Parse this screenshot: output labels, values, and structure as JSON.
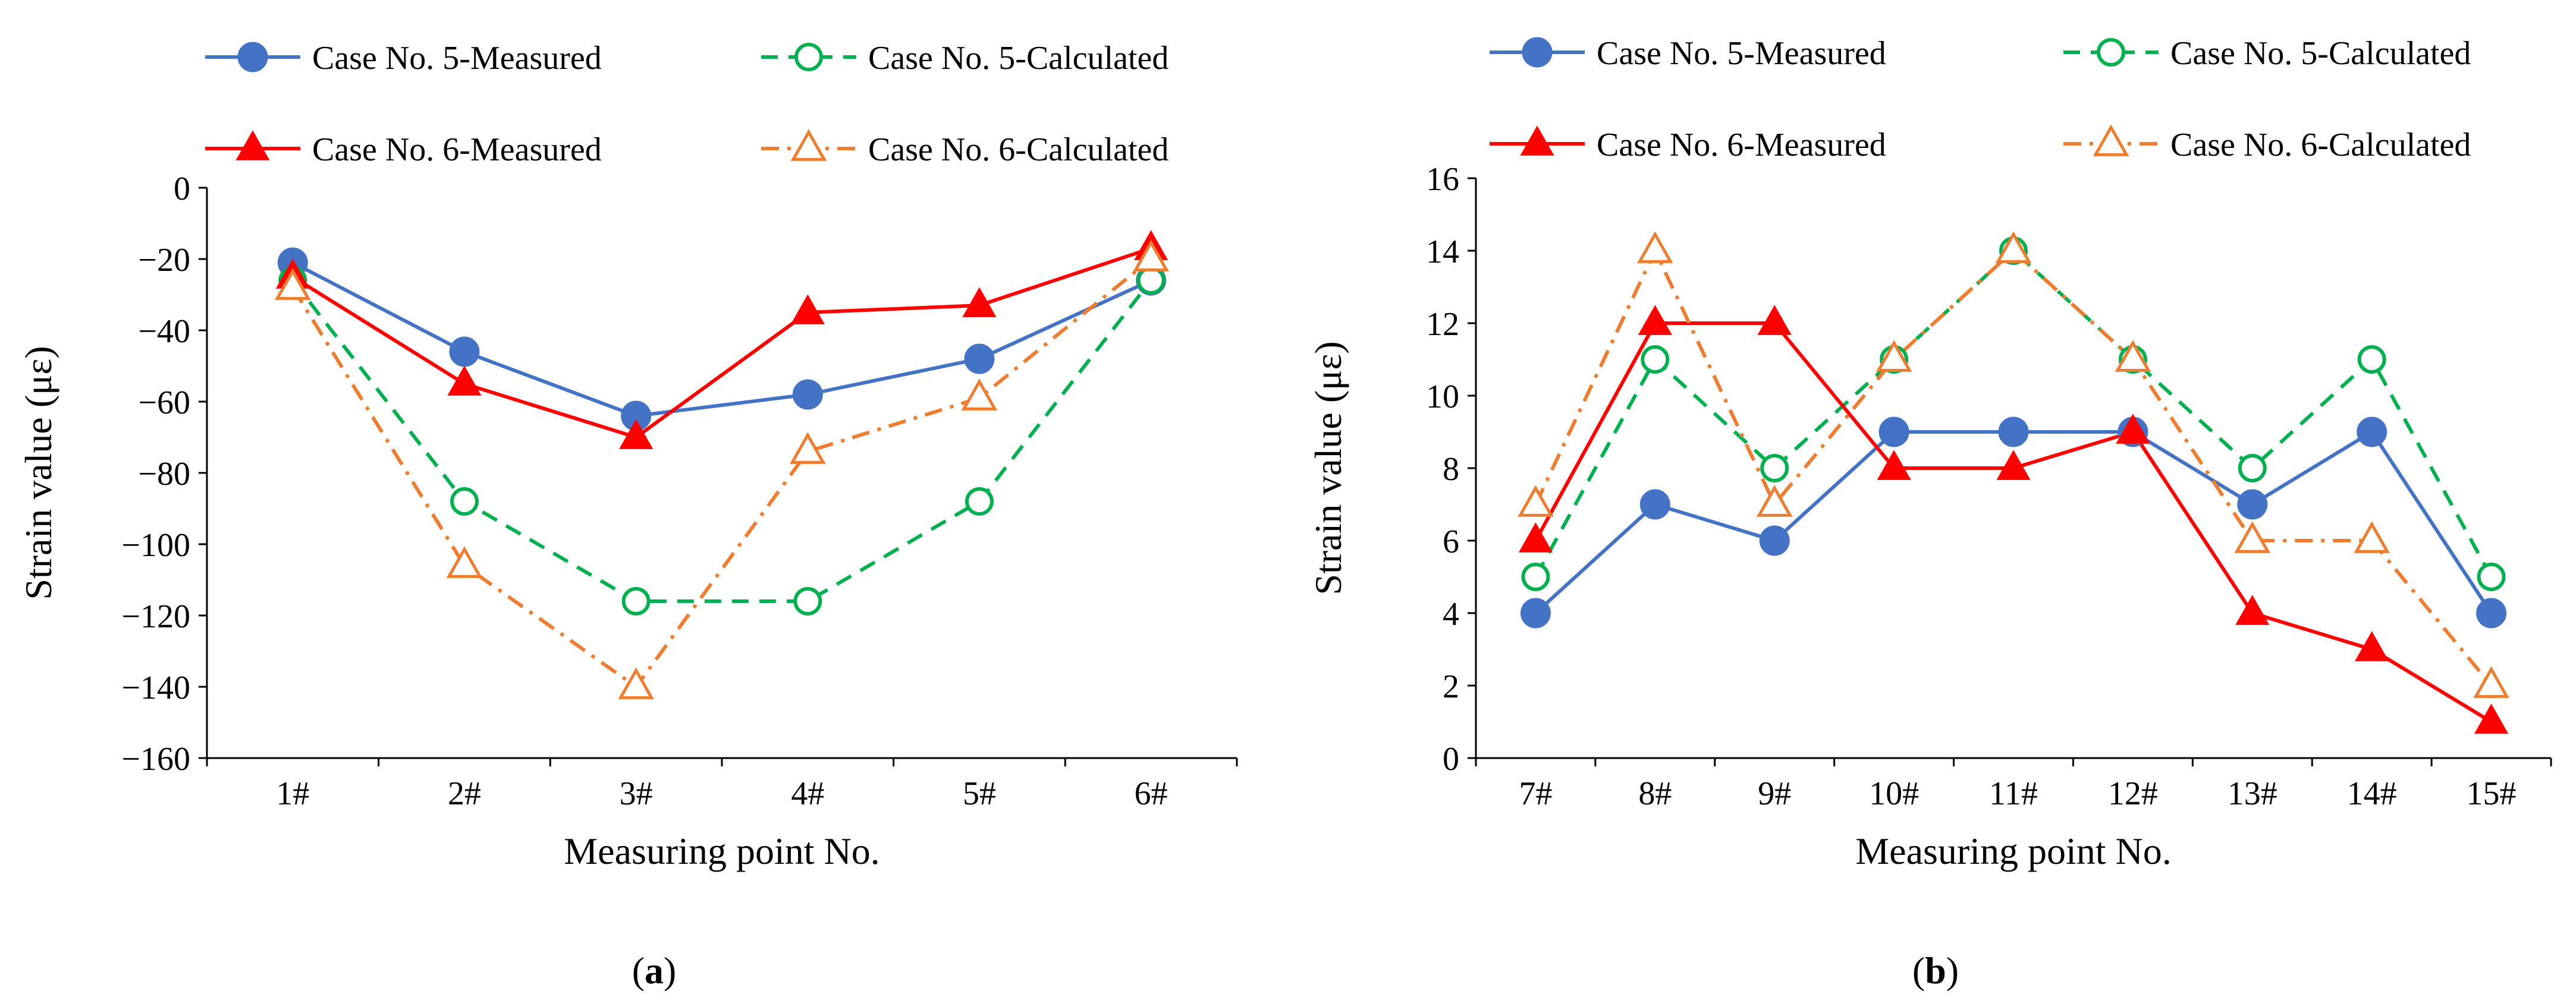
{
  "chart_data": [
    {
      "type": "line",
      "panel_label": "a",
      "xlabel": "Measuring point No.",
      "ylabel": "Strain value (με)",
      "categories": [
        "1#",
        "2#",
        "3#",
        "4#",
        "5#",
        "6#"
      ],
      "ylim": [
        -160,
        0
      ],
      "yticks": [
        0,
        -20,
        -40,
        -60,
        -80,
        -100,
        -120,
        -140,
        -160
      ],
      "legend_position": "top",
      "grid": false,
      "series": [
        {
          "name": "Case No. 5-Measured",
          "color": "#4472C4",
          "marker": "filled-circle",
          "dash": "solid",
          "values": [
            -21,
            -46,
            -64,
            -58,
            -48,
            -26
          ]
        },
        {
          "name": "Case No. 5-Calculated",
          "color": "#00B050",
          "marker": "open-circle",
          "dash": "dashed",
          "values": [
            -26,
            -88,
            -116,
            -116,
            -88,
            -26
          ]
        },
        {
          "name": "Case No. 6-Measured",
          "color": "#FF0000",
          "marker": "filled-triangle",
          "dash": "solid",
          "values": [
            -25,
            -55,
            -70,
            -35,
            -33,
            -17
          ]
        },
        {
          "name": "Case No. 6-Calculated",
          "color": "#ED7D31",
          "marker": "open-triangle",
          "dash": "dashdot",
          "values": [
            -28,
            -106,
            -140,
            -74,
            -59,
            -20
          ]
        }
      ]
    },
    {
      "type": "line",
      "panel_label": "b",
      "xlabel": "Measuring point No.",
      "ylabel": "Strain value (με)",
      "categories": [
        "7#",
        "8#",
        "9#",
        "10#",
        "11#",
        "12#",
        "13#",
        "14#",
        "15#"
      ],
      "ylim": [
        0,
        16
      ],
      "yticks": [
        0,
        2,
        4,
        6,
        8,
        10,
        12,
        14,
        16
      ],
      "legend_position": "top",
      "grid": false,
      "series": [
        {
          "name": "Case No. 5-Measured",
          "color": "#4472C4",
          "marker": "filled-circle",
          "dash": "solid",
          "values": [
            4,
            7,
            6,
            9,
            9,
            9,
            7,
            9,
            4
          ]
        },
        {
          "name": "Case No. 5-Calculated",
          "color": "#00B050",
          "marker": "open-circle",
          "dash": "dashed",
          "values": [
            5,
            11,
            8,
            11,
            14,
            11,
            8,
            11,
            5
          ]
        },
        {
          "name": "Case No. 6-Measured",
          "color": "#FF0000",
          "marker": "filled-triangle",
          "dash": "solid",
          "values": [
            6,
            12,
            12,
            8,
            8,
            9,
            4,
            3,
            1
          ]
        },
        {
          "name": "Case No. 6-Calculated",
          "color": "#ED7D31",
          "marker": "open-triangle",
          "dash": "dashdot",
          "values": [
            7,
            14,
            7,
            11,
            14,
            11,
            6,
            6,
            2
          ]
        }
      ]
    }
  ]
}
